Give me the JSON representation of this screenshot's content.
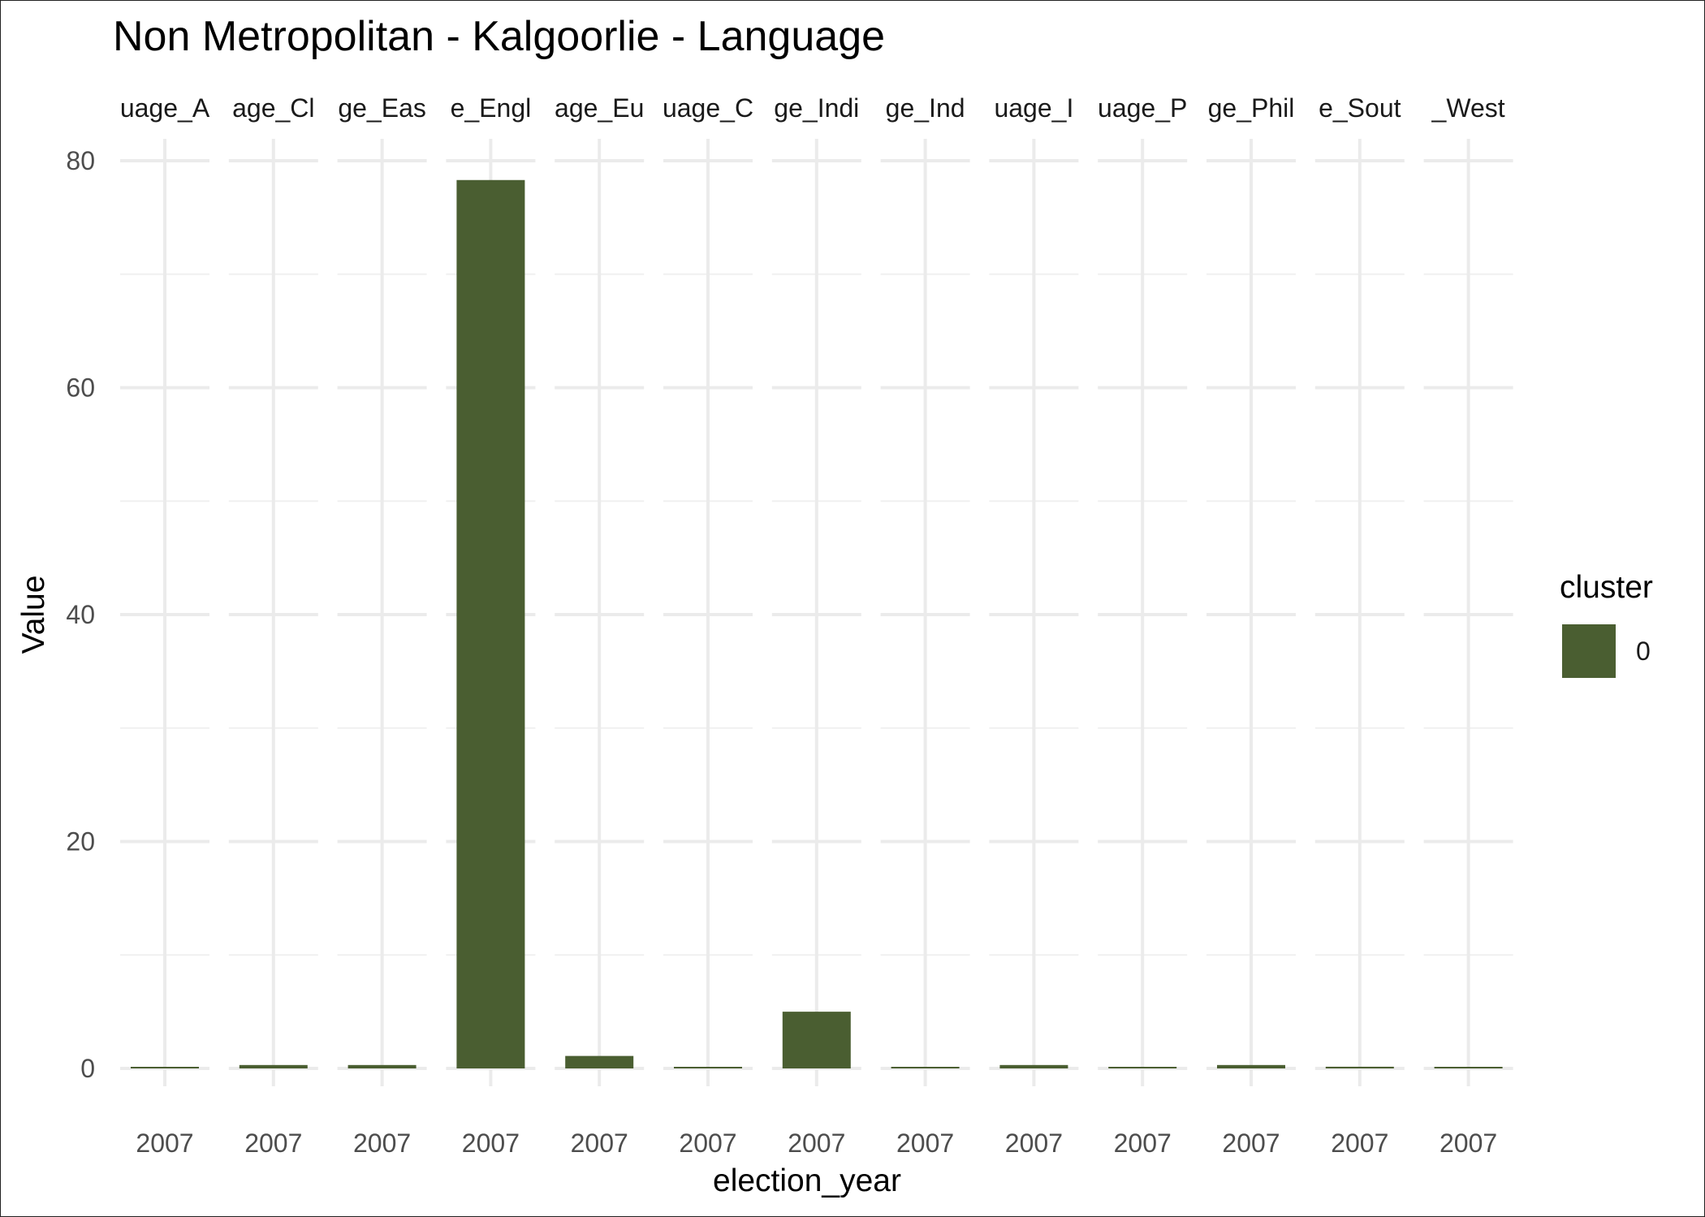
{
  "chart_data": {
    "type": "bar",
    "title": "Non Metropolitan - Kalgoorlie - Language",
    "xlabel": "election_year",
    "ylabel": "Value",
    "ylim": [
      0,
      82
    ],
    "y_ticks": [
      0,
      20,
      40,
      60,
      80
    ],
    "grid": true,
    "facet_labels": [
      "uage_A",
      "age_Cl",
      "ge_Eas",
      "e_Engl",
      "age_Eu",
      "uage_C",
      "ge_Indi",
      "ge_Ind",
      "uage_I",
      "uage_P",
      "ge_Phil",
      "e_Sout",
      "_West"
    ],
    "categories": [
      "2007",
      "2007",
      "2007",
      "2007",
      "2007",
      "2007",
      "2007",
      "2007",
      "2007",
      "2007",
      "2007",
      "2007",
      "2007"
    ],
    "series": [
      {
        "name": "0",
        "color": "#4a5e31",
        "values": [
          0.1,
          0.3,
          0.3,
          78.3,
          1.1,
          0.1,
          5.0,
          0.1,
          0.3,
          0.05,
          0.3,
          0.15,
          0.05
        ]
      }
    ],
    "legend": {
      "title": "cluster",
      "placement": "right",
      "items": [
        {
          "label": "0",
          "color": "#4a5e31"
        }
      ]
    }
  }
}
